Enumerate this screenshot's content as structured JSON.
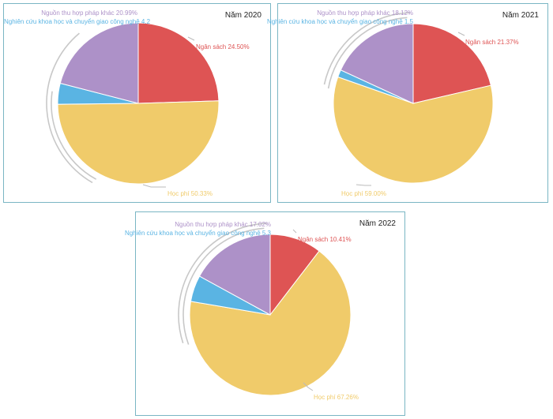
{
  "chart_data": [
    {
      "type": "pie",
      "title": "Năm 2020",
      "slices": [
        {
          "label": "Ngân sách 24.50%",
          "name": "Ngân sách",
          "value": 24.5,
          "color": "#de5454"
        },
        {
          "label": "Học phí 50.33%",
          "name": "Học phí",
          "value": 50.33,
          "color": "#f0cb6a"
        },
        {
          "label": "Nghiên cứu khoa học và chuyển giao công nghệ 4.2",
          "name": "Nghiên cứu khoa học và chuyển giao công nghệ",
          "value": 4.2,
          "color": "#5ab4e3"
        },
        {
          "label": "Nguồn thu hợp pháp khác 20.99%",
          "name": "Nguồn thu hợp pháp khác",
          "value": 20.99,
          "color": "#ad91c8"
        }
      ]
    },
    {
      "type": "pie",
      "title": "Năm 2021",
      "slices": [
        {
          "label": "Ngân sách 21.37%",
          "name": "Ngân sách",
          "value": 21.37,
          "color": "#de5454"
        },
        {
          "label": "Học phí 59.00%",
          "name": "Học phí",
          "value": 59.0,
          "color": "#f0cb6a"
        },
        {
          "label": "Nghiên cứu khoa học và chuyển giao công nghệ 1.5",
          "name": "Nghiên cứu khoa học và chuyển giao công nghệ",
          "value": 1.5,
          "color": "#5ab4e3"
        },
        {
          "label": "Nguồn thu hợp pháp khác 18.12%",
          "name": "Nguồn thu hợp pháp khác",
          "value": 18.12,
          "color": "#ad91c8"
        }
      ]
    },
    {
      "type": "pie",
      "title": "Năm 2022",
      "slices": [
        {
          "label": "Ngân sách 10.41%",
          "name": "Ngân sách",
          "value": 10.41,
          "color": "#de5454"
        },
        {
          "label": "Học phí 67.26%",
          "name": "Học phí",
          "value": 67.26,
          "color": "#f0cb6a"
        },
        {
          "label": "Nghiên cứu khoa học và chuyển giao công nghệ 5.3",
          "name": "Nghiên cứu khoa học và chuyển giao công nghệ",
          "value": 5.3,
          "color": "#5ab4e3"
        },
        {
          "label": "Nguồn thu hợp pháp khác 17.02%",
          "name": "Nguồn thu hợp pháp khác",
          "value": 17.02,
          "color": "#ad91c8"
        }
      ]
    }
  ]
}
